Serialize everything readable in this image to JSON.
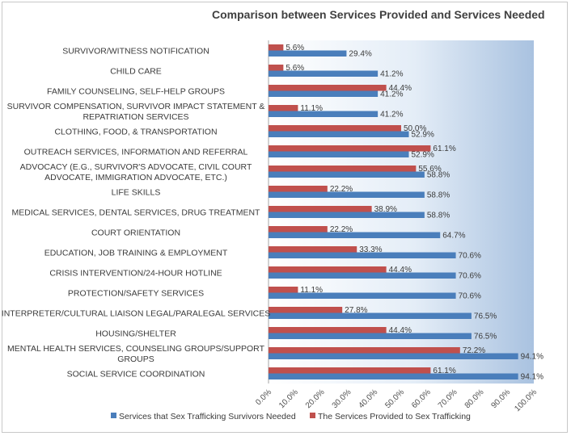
{
  "chart_data": {
    "type": "bar",
    "orientation": "horizontal",
    "title": "Comparison between Services Provided and Services Needed",
    "categories": [
      "SURVIVOR/WITNESS NOTIFICATION",
      "CHILD CARE",
      "FAMILY COUNSELING, SELF-HELP GROUPS",
      "SURVIVOR COMPENSATION, SURVIVOR IMPACT STATEMENT & REPATRIATION SERVICES",
      "CLOTHING, FOOD, & TRANSPORTATION",
      "OUTREACH SERVICES, INFORMATION AND REFERRAL",
      "ADVOCACY (E.G., SURVIVOR'S ADVOCATE, CIVIL COURT ADVOCATE, IMMIGRATION ADVOCATE, ETC.)",
      "LIFE SKILLS",
      "MEDICAL SERVICES, DENTAL SERVICES, DRUG TREATMENT",
      "COURT ORIENTATION",
      "EDUCATION, JOB TRAINING & EMPLOYMENT",
      "CRISIS INTERVENTION/24-HOUR HOTLINE",
      "PROTECTION/SAFETY SERVICES",
      "INTERPRETER/CULTURAL LIAISON LEGAL/PARALEGAL SERVICES",
      "HOUSING/SHELTER",
      "MENTAL HEALTH SERVICES, COUNSELING GROUPS/SUPPORT GROUPS",
      "SOCIAL SERVICE COORDINATION"
    ],
    "category_lines": [
      [
        "SURVIVOR/WITNESS NOTIFICATION"
      ],
      [
        "CHILD CARE"
      ],
      [
        "FAMILY COUNSELING, SELF-HELP GROUPS"
      ],
      [
        "SURVIVOR COMPENSATION, SURVIVOR IMPACT STATEMENT &",
        "REPATRIATION SERVICES"
      ],
      [
        "CLOTHING, FOOD, & TRANSPORTATION"
      ],
      [
        "OUTREACH SERVICES, INFORMATION AND REFERRAL"
      ],
      [
        "ADVOCACY (E.G., SURVIVOR'S ADVOCATE, CIVIL COURT",
        "ADVOCATE, IMMIGRATION ADVOCATE, ETC.)"
      ],
      [
        "LIFE SKILLS"
      ],
      [
        "MEDICAL SERVICES, DENTAL SERVICES, DRUG TREATMENT"
      ],
      [
        "COURT ORIENTATION"
      ],
      [
        "EDUCATION, JOB TRAINING & EMPLOYMENT"
      ],
      [
        "CRISIS INTERVENTION/24-HOUR HOTLINE"
      ],
      [
        "PROTECTION/SAFETY SERVICES"
      ],
      [
        "INTERPRETER/CULTURAL LIAISON LEGAL/PARALEGAL SERVICES"
      ],
      [
        "HOUSING/SHELTER"
      ],
      [
        "MENTAL HEALTH SERVICES, COUNSELING GROUPS/SUPPORT",
        "GROUPS"
      ],
      [
        "SOCIAL SERVICE COORDINATION"
      ]
    ],
    "series": [
      {
        "name": "Services that Sex Trafficking Survivors Needed",
        "color": "#4a7ebb",
        "values": [
          29.4,
          41.2,
          41.2,
          41.2,
          52.9,
          52.9,
          58.8,
          58.8,
          58.8,
          64.7,
          70.6,
          70.6,
          70.6,
          76.5,
          76.5,
          94.1,
          94.1
        ],
        "labels": [
          "29.4%",
          "41.2%",
          "41.2%",
          "41.2%",
          "52.9%",
          "52.9%",
          "58.8%",
          "58.8%",
          "58.8%",
          "64.7%",
          "70.6%",
          "70.6%",
          "70.6%",
          "76.5%",
          "76.5%",
          "94.1%",
          "94.1%"
        ]
      },
      {
        "name": "The Services Provided to Sex Trafficking",
        "color": "#c0504d",
        "values": [
          5.6,
          5.6,
          44.4,
          11.1,
          50.0,
          61.1,
          55.6,
          22.2,
          38.9,
          22.2,
          33.3,
          44.4,
          11.1,
          27.8,
          44.4,
          72.2,
          61.1
        ],
        "labels": [
          "5.6%",
          "5.6%",
          "44.4%",
          "11.1%",
          "50.0%",
          "61.1%",
          "55.6%",
          "22.2%",
          "38.9%",
          "22.2%",
          "33.3%",
          "44.4%",
          "11.1%",
          "27.8%",
          "44.4%",
          "72.2%",
          "61.1%"
        ]
      }
    ],
    "x_ticks": [
      "0.0%",
      "10.0%",
      "20.0%",
      "30.0%",
      "40.0%",
      "50.0%",
      "60.0%",
      "70.0%",
      "80.0%",
      "90.0%",
      "100.0%"
    ],
    "xlim": [
      0,
      100
    ],
    "xlabel": "",
    "ylabel": "",
    "grid": false,
    "plot_background": "gradient white-to-light-blue",
    "legend_position": "bottom"
  }
}
